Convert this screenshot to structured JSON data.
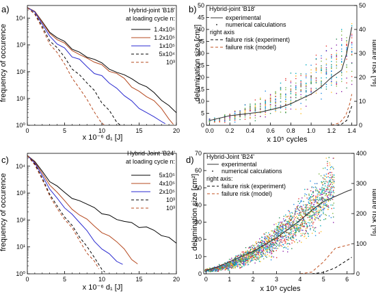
{
  "chart_data": [
    {
      "panel": "a)",
      "type": "line",
      "ylog": true,
      "xlabel": "x 10⁻⁶ d₁   [J]",
      "ylabel": "frequency of occurence",
      "xlim": [
        0,
        20
      ],
      "ylim": [
        1,
        30000
      ],
      "xticks": [
        0,
        5,
        10,
        15,
        20
      ],
      "yticks": [
        1,
        10,
        100,
        1000,
        10000
      ],
      "ytick_labels": [
        "10⁰",
        "10¹",
        "10²",
        "10³",
        "10⁴"
      ],
      "legend_title": [
        "Hybrid-joint 'B18'",
        "at loading cycle n:"
      ],
      "legend_position": "top-right",
      "series": [
        {
          "name": "1.4x10⁵",
          "color": "#000000",
          "dash": "",
          "points": [
            [
              0,
              25000
            ],
            [
              1,
              18000
            ],
            [
              2,
              7500
            ],
            [
              3,
              3600
            ],
            [
              4,
              2000
            ],
            [
              5,
              1200
            ],
            [
              6,
              800
            ],
            [
              7,
              550
            ],
            [
              8,
              390
            ],
            [
              9,
              280
            ],
            [
              10,
              200
            ],
            [
              11,
              140
            ],
            [
              12,
              100
            ],
            [
              13,
              72
            ],
            [
              14,
              50
            ],
            [
              15,
              35
            ],
            [
              16,
              24
            ],
            [
              17,
              16
            ],
            [
              18,
              10
            ],
            [
              19,
              6
            ],
            [
              20,
              3
            ]
          ]
        },
        {
          "name": "1.2x10⁵",
          "color": "#b5481e",
          "dash": "",
          "points": [
            [
              0,
              25000
            ],
            [
              1,
              18000
            ],
            [
              2,
              7000
            ],
            [
              3,
              3300
            ],
            [
              4,
              1800
            ],
            [
              5,
              1050
            ],
            [
              6,
              720
            ],
            [
              7,
              500
            ],
            [
              8,
              350
            ],
            [
              9,
              240
            ],
            [
              10,
              165
            ],
            [
              11,
              110
            ],
            [
              12,
              75
            ],
            [
              13,
              50
            ],
            [
              14,
              32
            ],
            [
              15,
              20
            ],
            [
              16,
              13
            ],
            [
              17,
              8
            ],
            [
              18,
              4
            ],
            [
              19,
              2
            ],
            [
              19.6,
              1
            ]
          ]
        },
        {
          "name": "1x10⁵",
          "color": "#2a2ad0",
          "dash": "",
          "points": [
            [
              0,
              25000
            ],
            [
              1,
              17000
            ],
            [
              2,
              6000
            ],
            [
              3,
              2600
            ],
            [
              4,
              1300
            ],
            [
              5,
              700
            ],
            [
              6,
              420
            ],
            [
              7,
              260
            ],
            [
              8,
              160
            ],
            [
              9,
              100
            ],
            [
              10,
              62
            ],
            [
              11,
              38
            ],
            [
              12,
              24
            ],
            [
              13,
              15
            ],
            [
              14,
              9
            ],
            [
              15,
              5
            ],
            [
              16,
              3
            ],
            [
              17,
              2
            ],
            [
              18,
              1.5
            ],
            [
              18.5,
              1
            ]
          ]
        },
        {
          "name": "5x10⁴",
          "color": "#000000",
          "dash": "4,3",
          "points": [
            [
              0,
              25000
            ],
            [
              1,
              15000
            ],
            [
              2,
              5000
            ],
            [
              3,
              1700
            ],
            [
              4,
              700
            ],
            [
              5,
              320
            ],
            [
              6,
              150
            ],
            [
              7,
              75
            ],
            [
              8,
              38
            ],
            [
              9,
              18
            ],
            [
              10,
              8
            ],
            [
              11,
              3.5
            ],
            [
              12,
              1.5
            ],
            [
              12.5,
              1
            ]
          ]
        },
        {
          "name": "10³",
          "color": "#b5481e",
          "dash": "4,3",
          "points": [
            [
              0,
              25000
            ],
            [
              1,
              14000
            ],
            [
              2,
              4200
            ],
            [
              3,
              1300
            ],
            [
              4,
              480
            ],
            [
              5,
              180
            ],
            [
              6,
              70
            ],
            [
              7,
              26
            ],
            [
              8,
              9
            ],
            [
              9,
              3
            ],
            [
              10,
              1.3
            ],
            [
              10.3,
              1
            ]
          ]
        }
      ]
    },
    {
      "panel": "b)",
      "type": "scatter",
      "xlabel": "x 10⁵ cycles",
      "ylabel": "delamination size [cm²]",
      "y2label": "failure risk [%]",
      "xlim": [
        -0.03,
        1.45
      ],
      "ylim": [
        0,
        50
      ],
      "y2lim": [
        0,
        50
      ],
      "xticks": [
        0.0,
        0.2,
        0.4,
        0.6,
        0.8,
        1.0,
        1.2,
        1.4
      ],
      "xtick_labels": [
        "0.0",
        "0.2",
        "0.4",
        "0.6",
        "0.8",
        "1.0",
        "1.2",
        "1.4"
      ],
      "yticks": [
        0,
        5,
        10,
        15,
        20,
        25,
        30,
        35,
        40,
        45,
        50
      ],
      "y2ticks": [
        0,
        10,
        20,
        30,
        40,
        50
      ],
      "legend_title": "Hybrid-joint 'B18'",
      "legend_position": "top-left",
      "legend_labels": {
        "experimental": "experimental",
        "numerical": "numerical calculations",
        "right_axis": "right axis",
        "fr_exp": "failure risk (experiment)",
        "fr_model": "failure risk (model)"
      },
      "experimental": [
        [
          0,
          2
        ],
        [
          0.1,
          3
        ],
        [
          0.2,
          4
        ],
        [
          0.3,
          4.5
        ],
        [
          0.4,
          5
        ],
        [
          0.5,
          5.5
        ],
        [
          0.6,
          6.5
        ],
        [
          0.7,
          7.5
        ],
        [
          0.8,
          9
        ],
        [
          0.9,
          11
        ],
        [
          1.0,
          13
        ],
        [
          1.1,
          16
        ],
        [
          1.2,
          20
        ],
        [
          1.3,
          23
        ],
        [
          1.35,
          30
        ],
        [
          1.4,
          41
        ]
      ],
      "failure_risk_experiment": [
        [
          1.25,
          0
        ],
        [
          1.3,
          0.5
        ],
        [
          1.35,
          2
        ],
        [
          1.4,
          8
        ]
      ],
      "failure_risk_model": [
        [
          1.2,
          0
        ],
        [
          1.28,
          1
        ],
        [
          1.34,
          4
        ],
        [
          1.38,
          9
        ],
        [
          1.4,
          13
        ]
      ],
      "numerical_spread": {
        "x_start": 0.0,
        "x_end": 1.4,
        "x_step": 0.05,
        "center_start": 2,
        "center_end": 30,
        "spread_start": 1,
        "spread_end": 20
      },
      "scatter_colors": [
        "#2e8b57",
        "#7cb342",
        "#1e88e5",
        "#8e24aa",
        "#fbc02d",
        "#e53935",
        "#00acc1"
      ]
    },
    {
      "panel": "c)",
      "type": "line",
      "ylog": true,
      "xlabel": "x 10⁻⁶ d₁   [J]",
      "ylabel": "frequency of occurence",
      "xlim": [
        0,
        20
      ],
      "ylim": [
        1,
        30000
      ],
      "xticks": [
        0,
        5,
        10,
        15,
        20
      ],
      "yticks": [
        1,
        10,
        100,
        1000,
        10000
      ],
      "ytick_labels": [
        "10⁰",
        "10¹",
        "10²",
        "10³",
        "10⁴"
      ],
      "legend_title": [
        "Hybrid-Joint 'B24'",
        "at loading cycle n:"
      ],
      "legend_position": "top-right",
      "series": [
        {
          "name": "5x10⁵",
          "color": "#000000",
          "dash": "",
          "points": [
            [
              0,
              25000
            ],
            [
              1,
              15000
            ],
            [
              2,
              6500
            ],
            [
              3,
              3200
            ],
            [
              4,
              1800
            ],
            [
              5,
              1100
            ],
            [
              6,
              750
            ],
            [
              7,
              520
            ],
            [
              8,
              370
            ],
            [
              9,
              270
            ],
            [
              10,
              200
            ],
            [
              11,
              150
            ],
            [
              12,
              115
            ],
            [
              13,
              90
            ],
            [
              14,
              72
            ],
            [
              15,
              58
            ],
            [
              16,
              47
            ],
            [
              17,
              38
            ],
            [
              18,
              30
            ],
            [
              19,
              22
            ],
            [
              20,
              14
            ]
          ]
        },
        {
          "name": "4x10⁵",
          "color": "#b5481e",
          "dash": "",
          "points": [
            [
              0,
              25000
            ],
            [
              1,
              14000
            ],
            [
              2,
              5500
            ],
            [
              3,
              2400
            ],
            [
              4,
              1100
            ],
            [
              5,
              550
            ],
            [
              6,
              300
            ],
            [
              7,
              170
            ],
            [
              8,
              100
            ],
            [
              9,
              60
            ],
            [
              10,
              38
            ],
            [
              11,
              24
            ],
            [
              12,
              14
            ],
            [
              13,
              8
            ],
            [
              14,
              4
            ],
            [
              14.8,
              2
            ]
          ]
        },
        {
          "name": "2x10⁵",
          "color": "#2a2ad0",
          "dash": "",
          "points": [
            [
              0,
              25000
            ],
            [
              1,
              13000
            ],
            [
              2,
              4500
            ],
            [
              3,
              1700
            ],
            [
              4,
              700
            ],
            [
              5,
              300
            ],
            [
              6,
              140
            ],
            [
              7,
              70
            ],
            [
              8,
              36
            ],
            [
              9,
              18
            ],
            [
              10,
              9
            ],
            [
              11,
              5
            ],
            [
              12,
              3
            ],
            [
              12.8,
              2
            ]
          ]
        },
        {
          "name": "10³",
          "color": "#000000",
          "dash": "4,3",
          "points": [
            [
              0,
              25000
            ],
            [
              1,
              12000
            ],
            [
              2,
              3600
            ],
            [
              3,
              1100
            ],
            [
              4,
              380
            ],
            [
              5,
              140
            ],
            [
              6,
              55
            ],
            [
              7,
              22
            ],
            [
              8,
              9
            ],
            [
              9,
              3.5
            ],
            [
              10,
              1.5
            ],
            [
              10.4,
              1
            ]
          ]
        },
        {
          "name": "10³",
          "color": "#b5481e",
          "dash": "4,3",
          "points": [
            [
              0,
              25000
            ],
            [
              1,
              11000
            ],
            [
              2,
              3200
            ],
            [
              3,
              950
            ],
            [
              4,
              320
            ],
            [
              5,
              115
            ],
            [
              6,
              45
            ],
            [
              7,
              18
            ],
            [
              8,
              7
            ],
            [
              9,
              2.8
            ],
            [
              9.6,
              1.5
            ]
          ]
        }
      ]
    },
    {
      "panel": "d)",
      "type": "scatter",
      "xlabel": "x 10⁵ cycles",
      "ylabel": "delamination size [cm²]",
      "y2label": "failure risk [%]",
      "xlim": [
        -0.1,
        6.3
      ],
      "ylim": [
        0,
        70
      ],
      "y2lim": [
        0,
        400
      ],
      "xticks": [
        0,
        1,
        2,
        3,
        4,
        5,
        6
      ],
      "xtick_labels": [
        "0",
        "1",
        "2",
        "3",
        "4",
        "5",
        "6"
      ],
      "yticks": [
        0,
        10,
        20,
        30,
        40,
        50,
        60,
        70
      ],
      "y2ticks": [
        0,
        100,
        200,
        300,
        400
      ],
      "legend_title": "Hybrid-Joint 'B24'",
      "legend_position": "top-left",
      "legend_labels": {
        "experimental": "experimental",
        "numerical": "numerical calculations",
        "right_axis": "right axis:",
        "fr_exp": "failure risk (experiment)",
        "fr_model": "failure risk (model)"
      },
      "experimental": [
        [
          0,
          2
        ],
        [
          0.5,
          4
        ],
        [
          1,
          7
        ],
        [
          1.5,
          10
        ],
        [
          2,
          13
        ],
        [
          2.5,
          17
        ],
        [
          3,
          21
        ],
        [
          3.5,
          26
        ],
        [
          4,
          31
        ],
        [
          4.5,
          37
        ],
        [
          5,
          42
        ],
        [
          5.5,
          45
        ],
        [
          6,
          48
        ],
        [
          6.2,
          49
        ]
      ],
      "failure_risk_experiment": [
        [
          4.5,
          0
        ],
        [
          5,
          5
        ],
        [
          5.5,
          20
        ],
        [
          6,
          45
        ],
        [
          6.2,
          55
        ]
      ],
      "failure_risk_model": [
        [
          4,
          0
        ],
        [
          4.5,
          6
        ],
        [
          5,
          40
        ],
        [
          5.5,
          85
        ],
        [
          6,
          95
        ],
        [
          6.2,
          98
        ]
      ],
      "numerical_spread": {
        "x_start": 0.0,
        "x_end": 5.4,
        "x_step": 0.1,
        "center_start": 2,
        "center_end": 50,
        "spread_start": 1,
        "spread_end": 26
      },
      "scatter_colors": [
        "#2e8b57",
        "#7cb342",
        "#1e88e5",
        "#8e24aa",
        "#fbc02d",
        "#e53935",
        "#00acc1"
      ]
    }
  ]
}
